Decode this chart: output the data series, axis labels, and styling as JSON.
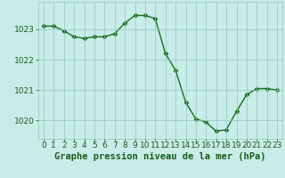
{
  "x": [
    0,
    1,
    2,
    3,
    4,
    5,
    6,
    7,
    8,
    9,
    10,
    11,
    12,
    13,
    14,
    15,
    16,
    17,
    18,
    19,
    20,
    21,
    22,
    23
  ],
  "y": [
    1023.1,
    1023.1,
    1022.95,
    1022.75,
    1022.7,
    1022.75,
    1022.75,
    1022.85,
    1023.2,
    1023.45,
    1023.45,
    1023.35,
    1022.2,
    1021.65,
    1020.6,
    1020.05,
    1019.95,
    1019.65,
    1019.7,
    1020.3,
    1020.85,
    1021.05,
    1021.05,
    1021.0
  ],
  "line_color": "#1a6e1a",
  "marker": "D",
  "marker_size": 2.5,
  "bg_color": "#c8ece8",
  "grid_color": "#8ec8c0",
  "xlabel": "Graphe pression niveau de la mer (hPa)",
  "xlabel_color": "#1a5c1a",
  "xlabel_fontsize": 7.5,
  "tick_color": "#1a5c1a",
  "tick_fontsize": 6.5,
  "ylim": [
    1019.4,
    1023.9
  ],
  "yticks": [
    1020,
    1021,
    1022,
    1023
  ],
  "xlim": [
    -0.5,
    23.5
  ],
  "xticks": [
    0,
    1,
    2,
    3,
    4,
    5,
    6,
    7,
    8,
    9,
    10,
    11,
    12,
    13,
    14,
    15,
    16,
    17,
    18,
    19,
    20,
    21,
    22,
    23
  ]
}
